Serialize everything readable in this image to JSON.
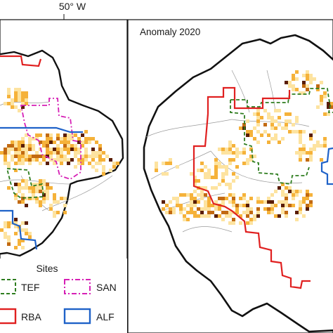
{
  "top_axis": {
    "tick_label": "50° W"
  },
  "right_panel": {
    "title": "Anomaly 2020"
  },
  "legend": {
    "title": "Sites",
    "items": [
      {
        "name": "TEF",
        "color": "#2e7d1f",
        "style": "dashed"
      },
      {
        "name": "SAN",
        "color": "#d61fb5",
        "style": "dash-dot"
      },
      {
        "name": "RBA",
        "color": "#e02020",
        "style": "solid"
      },
      {
        "name": "ALF",
        "color": "#1f62c8",
        "style": "solid"
      }
    ]
  },
  "colors": {
    "anomaly_low": "#fde3a0",
    "anomaly_mid": "#f5b23a",
    "anomaly_high": "#c26a12",
    "anomaly_max": "#5a1d04",
    "boundary": "#111111",
    "rivers": "#9a9a9a"
  }
}
